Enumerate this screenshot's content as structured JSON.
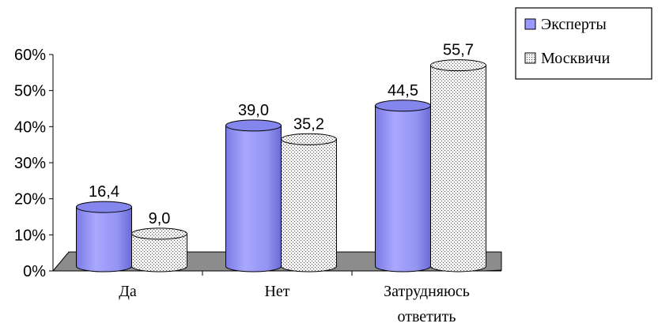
{
  "chart_data": {
    "type": "bar",
    "categories": [
      "Да",
      "Нет",
      "Затрудняюсь ответить"
    ],
    "category_lines": [
      [
        "Да"
      ],
      [
        "Нет"
      ],
      [
        "Затрудняюсь",
        "ответить"
      ]
    ],
    "series": [
      {
        "name": "Эксперты",
        "values": [
          16.4,
          39.0,
          44.5
        ],
        "labels": [
          "16,4",
          "39,0",
          "44,5"
        ],
        "color": "#9999ff"
      },
      {
        "name": "Москвичи",
        "values": [
          9.0,
          35.2,
          55.7
        ],
        "labels": [
          "9,0",
          "35,2",
          "55,7"
        ],
        "color": "#e8e8e8"
      }
    ],
    "ylim": [
      0,
      60
    ],
    "yticks": [
      "0%",
      "10%",
      "20%",
      "30%",
      "40%",
      "50%",
      "60%"
    ],
    "legend_position": "top-right",
    "grid": false,
    "floor_color": "#808080"
  }
}
